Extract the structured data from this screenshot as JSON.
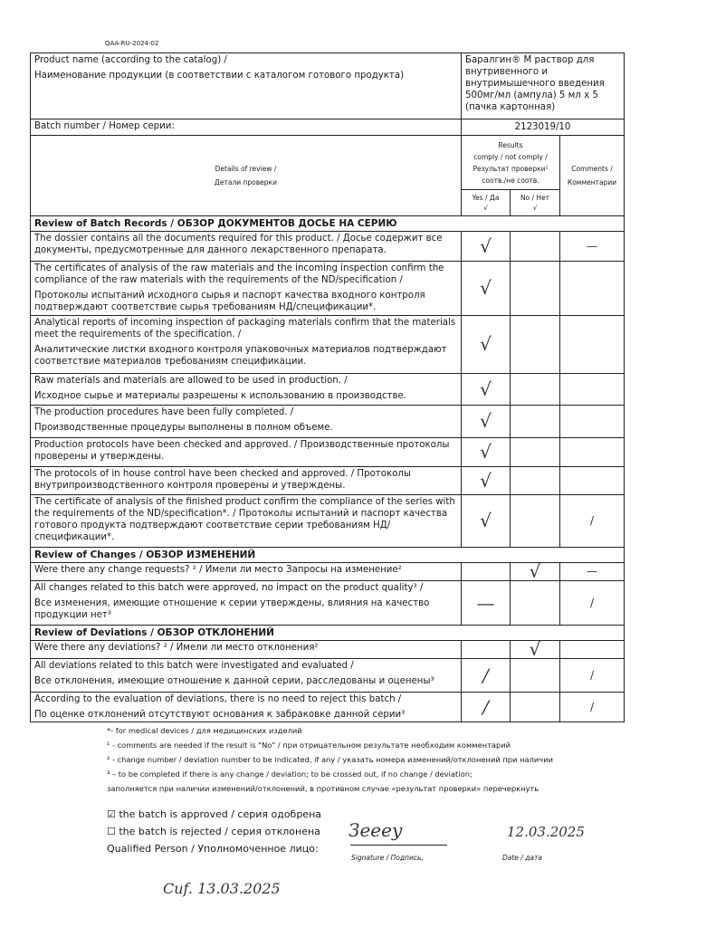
{
  "doc_code": "QAA-RU-2024-02",
  "product": {
    "label_en": "Product name (according to the catalog) /",
    "label_ru": "Наименование продукции (в соответствии с каталогом готового продукта)",
    "value": "Баралгин® М раствор для внутривенного и внутримышечного введения 500мг/мл (ампула) 5 мл х 5 (пачка картонная)"
  },
  "batch": {
    "label": "Batch number / Номер серии:",
    "value": "2123019/10"
  },
  "header": {
    "details_en": "Details of review /",
    "details_ru": "Детали проверки",
    "results": "Results",
    "results2": "comply / not comply /",
    "results3": "Результат проверки¹",
    "results4": "соотв./не соотв.",
    "yes": "Yes / Да",
    "no": "No / Нет",
    "tick": "√",
    "comments_en": "Comments /",
    "comments_ru": "Комментарии"
  },
  "sections": [
    {
      "title": "Review of Batch Records / ОБЗОР ДОКУМЕНТОВ ДОСЬЕ НА СЕРИЮ",
      "rows": [
        {
          "en": "The dossier contains all the documents required for this product. / Досье содержит все документы, предусмотренные для данного лекарственного препарата.",
          "ru": "",
          "yes": "√",
          "no": "",
          "comment": "—"
        },
        {
          "en": "The certificates of analysis of the raw materials and the incoming inspection confirm the compliance of the raw materials with the requirements of the ND/specification /",
          "ru": "Протоколы испытаний исходного сырья и паспорт качества входного контроля подтверждают соответствие сырья требованиям НД/спецификации*.",
          "yes": "√",
          "no": "",
          "comment": ""
        },
        {
          "en": "Analytical reports of incoming inspection of packaging materials confirm that the materials meet the requirements of the specification. /",
          "ru": "Аналитические листки входного контроля упаковочных материалов подтверждают соответствие материалов требованиям спецификации.",
          "yes": "√",
          "no": "",
          "comment": ""
        },
        {
          "en": "Raw materials and materials are allowed to be used in production. /",
          "ru": "Исходное сырье и материалы разрешены к использованию в производстве.",
          "yes": "√",
          "no": "",
          "comment": ""
        },
        {
          "en": "The production procedures have been fully completed. /",
          "ru": "Производственные процедуры выполнены в полном объеме.",
          "yes": "√",
          "no": "",
          "comment": ""
        },
        {
          "en": "Production protocols have been checked and approved. / Производственные протоколы проверены и утверждены.",
          "ru": "",
          "yes": "√",
          "no": "",
          "comment": ""
        },
        {
          "en": "The protocols of in house control have been checked and approved. / Протоколы внутрипроизводственного контроля проверены и утверждены.",
          "ru": "",
          "yes": "√",
          "no": "",
          "comment": ""
        },
        {
          "en": "The certificate of analysis of the finished product confirm the compliance of the series with the requirements of the ND/specification*. / Протоколы испытаний и паспорт качества готового продукта подтверждают соответствие серии требованиям НД/спецификации*.",
          "ru": "",
          "yes": "√",
          "no": "",
          "comment": "/"
        }
      ]
    },
    {
      "title": "Review of Changes / ОБЗОР ИЗМЕНЕНИЙ",
      "rows": [
        {
          "en": "Were there any change requests? ² / Имели ли место Запросы на изменение²",
          "ru": "",
          "yes": "",
          "no": "√",
          "comment": "—"
        },
        {
          "en": "All changes related to this batch were approved, no impact on the product quality³ /",
          "ru": "Все изменения, имеющие отношение к серии утверждены, влияния на качество продукции нет³",
          "yes": "—",
          "no": "",
          "comment": "/"
        }
      ]
    },
    {
      "title": "Review of Deviations / ОБЗОР ОТКЛОНЕНИЙ",
      "rows": [
        {
          "en": "Were there any deviations? ² / Имели ли место отклонения²",
          "ru": "",
          "yes": "",
          "no": "√",
          "comment": ""
        },
        {
          "en": "All deviations related to this batch were investigated and evaluated /",
          "ru": "Все отклонения, имеющие отношение к данной серии, расследованы и оценены³",
          "yes": "/",
          "no": "",
          "comment": "/"
        },
        {
          "en": "According to the evaluation of deviations, there is no need to reject this batch /",
          "ru": "По оценке отклонений отсутствуют основания к забраковке данной серии³",
          "yes": "/",
          "no": "",
          "comment": "/"
        }
      ]
    }
  ],
  "notes": [
    "*- for medical devices / для медицинских изделий",
    "¹ - comments are needed if the result is \"No\" / при отрицательном результате необходим комментарий",
    "² - change number / deviation number to be indicated, if any / указать номера изменений/отклонений при наличии",
    "³ – to be completed if there is any change / deviation; to be crossed out, if no change / deviation;",
    "заполняется при наличии изменений/отклонений, в противном случае «результат проверки» перечеркнуть"
  ],
  "decision": {
    "approved": "the batch is approved / серия одобрена",
    "approved_checked": true,
    "rejected": "the batch is rejected / серия отклонена",
    "rejected_checked": false,
    "qp": "Qualified Person / Уполномоченное лицо:"
  },
  "signature": {
    "label": "Signature / Подпись,",
    "date_label": "Date / дата",
    "date": "12.03.2025",
    "handwritten": "Сиf.  13.03.2025"
  }
}
